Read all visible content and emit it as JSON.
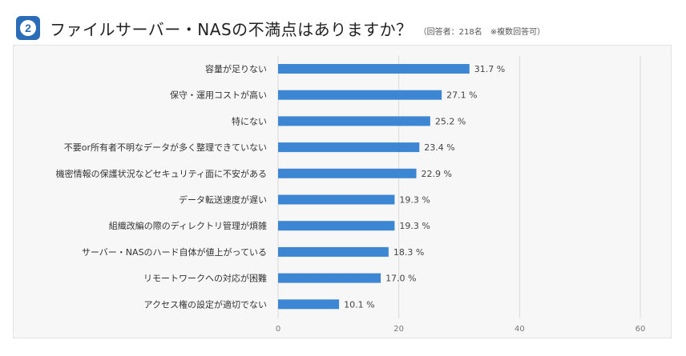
{
  "header": {
    "badge_number": "2",
    "title": "ファイルサーバー・NASの不満点はありますか？",
    "note": "（回答者：218名　※複数回答可）"
  },
  "colors": {
    "bar": "#3c86d3",
    "badge": "#2b6cb9",
    "grid": "#d9d9d9"
  },
  "chart_data": {
    "type": "bar",
    "orientation": "horizontal",
    "title": "ファイルサーバー・NASの不満点はありますか？",
    "categories": [
      "容量が足りない",
      "保守・運用コストが高い",
      "特にない",
      "不要or所有者不明なデータが多く整理できていない",
      "機密情報の保護状況などセキュリティ面に不安がある",
      "データ転送速度が遅い",
      "組織改編の際のディレクトリ管理が煩雑",
      "サーバー・NASのハード自体が値上がっている",
      "リモートワークへの対応が困難",
      "アクセス権の設定が適切でない"
    ],
    "values": [
      31.7,
      27.1,
      25.2,
      23.4,
      22.9,
      19.3,
      19.3,
      18.3,
      17.0,
      10.1
    ],
    "labels": [
      "31.7 %",
      "27.1 %",
      "25.2 %",
      "23.4 %",
      "22.9 %",
      "19.3 %",
      "19.3 %",
      "18.3 %",
      "17.0 %",
      "10.1 %"
    ],
    "xlim": [
      0,
      60
    ],
    "xticks": [
      "0",
      "20",
      "40",
      "60"
    ],
    "xtick_values": [
      0,
      20,
      40,
      60
    ],
    "unit": "%"
  }
}
